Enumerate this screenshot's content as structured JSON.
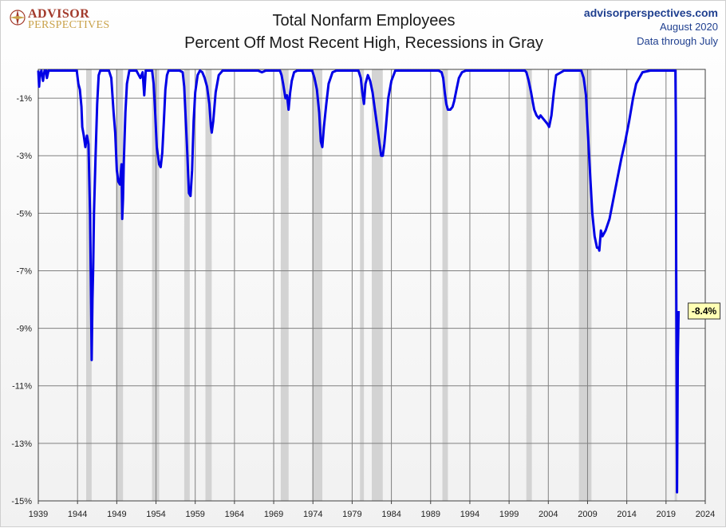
{
  "logo": {
    "line1": "ADVISOR",
    "line2": "PERSPECTIVES",
    "icon": "compass-rose-icon"
  },
  "header": {
    "title_line1": "Total Nonfarm Employees",
    "title_line2": "Percent Off Most Recent High, Recessions in Gray",
    "source": "advisorperspectives.com",
    "date": "August 2020",
    "note": "Data through July"
  },
  "colors": {
    "line": "#0000e6",
    "recession": "#d3d3d3",
    "grid": "#808080",
    "annotation_fill": "#ffffb4"
  },
  "chart_data": {
    "type": "line",
    "title": "Total Nonfarm Employees",
    "subtitle": "Percent Off Most Recent High, Recessions in Gray",
    "xlim": [
      1939,
      2024
    ],
    "ylim": [
      -15,
      0
    ],
    "x_ticks": [
      "1939",
      "1944",
      "1949",
      "1954",
      "1959",
      "1964",
      "1969",
      "1974",
      "1979",
      "1984",
      "1989",
      "1994",
      "1999",
      "2004",
      "2009",
      "2014",
      "2019",
      "2024"
    ],
    "y_ticks": [
      {
        "value": -1,
        "label": "-1%"
      },
      {
        "value": -3,
        "label": "-3%"
      },
      {
        "value": -5,
        "label": "-5%"
      },
      {
        "value": -7,
        "label": "-7%"
      },
      {
        "value": -9,
        "label": "-9%"
      },
      {
        "value": -11,
        "label": "-11%"
      },
      {
        "value": -13,
        "label": "-13%"
      },
      {
        "value": -15,
        "label": "-15%"
      }
    ],
    "grid": true,
    "recessions": [
      [
        1945.1,
        1945.8
      ],
      [
        1948.9,
        1949.8
      ],
      [
        1953.5,
        1954.4
      ],
      [
        1957.6,
        1958.3
      ],
      [
        1960.3,
        1961.1
      ],
      [
        1969.9,
        1970.9
      ],
      [
        1973.9,
        1975.2
      ],
      [
        1980.0,
        1980.5
      ],
      [
        1981.5,
        1982.9
      ],
      [
        1990.5,
        1991.2
      ],
      [
        2001.2,
        2001.9
      ],
      [
        2007.9,
        2009.5
      ],
      [
        2020.1,
        2020.4
      ]
    ],
    "series": [
      {
        "x": [
          1939.0,
          1939.1,
          1939.2,
          1939.4,
          1939.6,
          1939.8,
          1940.0,
          1940.1,
          1940.3,
          1940.6,
          1941.0,
          1941.5,
          1942.0,
          1942.5,
          1943.0,
          1943.5,
          1943.9,
          1944.1,
          1944.3,
          1944.5,
          1944.6,
          1944.8,
          1945.0,
          1945.2,
          1945.4,
          1945.6,
          1945.7,
          1945.8,
          1945.9,
          1946.0,
          1946.1,
          1946.3,
          1946.5,
          1946.7,
          1946.9,
          1947.1,
          1947.4,
          1947.7,
          1948.0,
          1948.3,
          1948.6,
          1948.8,
          1949.0,
          1949.2,
          1949.4,
          1949.6,
          1949.7,
          1949.8,
          1949.9,
          1950.1,
          1950.3,
          1950.6,
          1951.0,
          1951.5,
          1952.0,
          1952.3,
          1952.5,
          1952.7,
          1953.0,
          1953.5,
          1953.7,
          1953.9,
          1954.1,
          1954.4,
          1954.6,
          1954.8,
          1955.0,
          1955.2,
          1955.4,
          1955.6,
          1956.0,
          1956.5,
          1957.0,
          1957.4,
          1957.6,
          1957.8,
          1958.0,
          1958.2,
          1958.4,
          1958.6,
          1958.8,
          1959.0,
          1959.3,
          1959.6,
          1959.9,
          1960.2,
          1960.5,
          1960.8,
          1961.0,
          1961.1,
          1961.3,
          1961.6,
          1962.0,
          1962.5,
          1963.0,
          1964.0,
          1965.0,
          1966.0,
          1967.0,
          1967.5,
          1968.0,
          1969.0,
          1969.8,
          1970.0,
          1970.2,
          1970.5,
          1970.7,
          1970.9,
          1971.1,
          1971.3,
          1971.6,
          1972.0,
          1972.5,
          1973.0,
          1973.5,
          1973.9,
          1974.2,
          1974.5,
          1974.8,
          1975.0,
          1975.2,
          1975.4,
          1975.7,
          1976.0,
          1976.5,
          1977.0,
          1978.0,
          1979.0,
          1979.8,
          1980.1,
          1980.3,
          1980.5,
          1980.7,
          1981.0,
          1981.3,
          1981.6,
          1981.9,
          1982.2,
          1982.5,
          1982.7,
          1982.9,
          1983.1,
          1983.3,
          1983.6,
          1984.0,
          1984.5,
          1985.0,
          1986.0,
          1987.0,
          1988.0,
          1989.0,
          1990.0,
          1990.4,
          1990.6,
          1990.8,
          1991.0,
          1991.2,
          1991.5,
          1991.8,
          1992.0,
          1992.3,
          1992.6,
          1993.0,
          1993.5,
          1994.0,
          1996.0,
          1998.0,
          2000.0,
          2001.0,
          2001.2,
          2001.5,
          2001.8,
          2002.0,
          2002.2,
          2002.5,
          2002.8,
          2003.0,
          2003.3,
          2003.6,
          2003.9,
          2004.1,
          2004.4,
          2004.7,
          2005.0,
          2006.0,
          2007.0,
          2007.9,
          2008.2,
          2008.5,
          2008.8,
          2009.0,
          2009.3,
          2009.6,
          2009.9,
          2010.2,
          2010.4,
          2010.5,
          2010.7,
          2010.9,
          2011.3,
          2011.8,
          2012.3,
          2012.8,
          2013.3,
          2013.8,
          2014.3,
          2014.8,
          2015.2,
          2016.0,
          2017.0,
          2018.0,
          2019.0,
          2020.1,
          2020.2,
          2020.25,
          2020.3,
          2020.4,
          2020.5,
          2020.6
        ],
        "y": [
          0,
          -0.6,
          -0.2,
          0,
          -0.4,
          0,
          0,
          -0.3,
          0,
          0,
          0,
          0,
          0,
          0,
          0,
          0,
          0,
          -0.5,
          -0.7,
          -1.3,
          -2.0,
          -2.3,
          -2.7,
          -2.3,
          -2.6,
          -5.0,
          -7.5,
          -10.1,
          -8.0,
          -6.9,
          -5.0,
          -3.0,
          -1.2,
          -0.2,
          0,
          0,
          0,
          0,
          0,
          -0.3,
          -1.5,
          -2.2,
          -3.5,
          -3.9,
          -4.0,
          -3.3,
          -5.2,
          -4.5,
          -3.2,
          -1.5,
          -0.5,
          0,
          0,
          0,
          -0.3,
          -0.1,
          -0.9,
          0,
          0,
          0,
          -0.5,
          -1.5,
          -2.7,
          -3.3,
          -3.4,
          -2.9,
          -1.8,
          -0.7,
          -0.2,
          0,
          0,
          0,
          0,
          -0.1,
          -0.6,
          -1.8,
          -3.0,
          -4.3,
          -4.4,
          -3.5,
          -1.8,
          -0.8,
          -0.2,
          0,
          -0.1,
          -0.3,
          -0.6,
          -1.2,
          -2.0,
          -2.2,
          -1.8,
          -0.8,
          -0.2,
          0,
          0,
          0,
          0,
          0,
          0,
          -0.1,
          0,
          0,
          0,
          -0.2,
          -0.5,
          -1.0,
          -0.9,
          -1.4,
          -0.8,
          -0.4,
          -0.1,
          0,
          0,
          0,
          0,
          0,
          -0.3,
          -0.7,
          -1.5,
          -2.5,
          -2.7,
          -2.0,
          -1.2,
          -0.5,
          -0.1,
          0,
          0,
          0,
          0,
          -0.3,
          -0.8,
          -1.2,
          -0.5,
          -0.2,
          -0.4,
          -0.8,
          -1.4,
          -2.0,
          -2.6,
          -3.0,
          -3.0,
          -2.6,
          -2.0,
          -1.0,
          -0.4,
          0,
          0,
          0,
          0,
          0,
          0,
          0,
          -0.1,
          -0.3,
          -0.8,
          -1.2,
          -1.4,
          -1.4,
          -1.3,
          -1.1,
          -0.7,
          -0.3,
          -0.1,
          0,
          0,
          0,
          0,
          0,
          0,
          -0.1,
          -0.4,
          -0.8,
          -1.1,
          -1.4,
          -1.6,
          -1.7,
          -1.6,
          -1.7,
          -1.8,
          -1.9,
          -2.0,
          -1.6,
          -0.8,
          -0.2,
          0,
          0,
          0,
          0,
          -0.3,
          -0.9,
          -2.0,
          -3.5,
          -5.0,
          -5.8,
          -6.2,
          -6.2,
          -6.3,
          -5.6,
          -5.8,
          -5.6,
          -5.2,
          -4.5,
          -3.8,
          -3.1,
          -2.5,
          -1.8,
          -1.0,
          -0.5,
          -0.1,
          0,
          0,
          0,
          0,
          0,
          -1.8,
          -7.0,
          -14.7,
          -10.0,
          -8.4
        ]
      }
    ],
    "annotation": {
      "x": 2020.6,
      "y": -8.4,
      "label": "-8.4%"
    }
  }
}
